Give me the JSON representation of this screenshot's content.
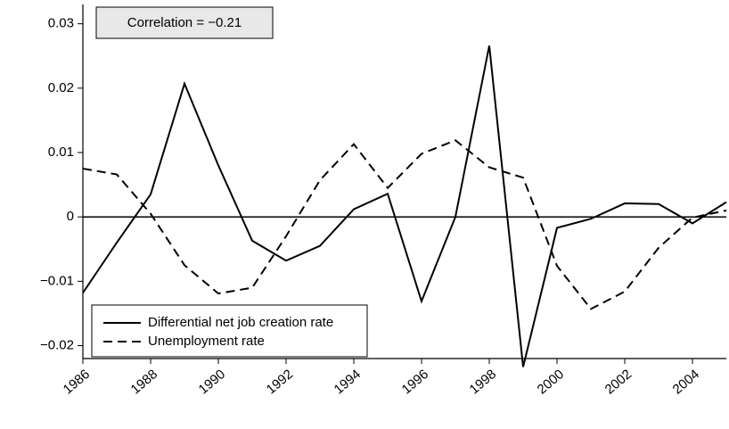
{
  "chart_data": {
    "type": "line",
    "annotation": "Correlation = −0.21",
    "x": [
      1986,
      1987,
      1988,
      1989,
      1990,
      1991,
      1992,
      1993,
      1994,
      1995,
      1996,
      1997,
      1998,
      1999,
      2000,
      2001,
      2002,
      2003,
      2004,
      2005
    ],
    "series": [
      {
        "name": "Differential net job creation rate",
        "color": "#000000",
        "dash": "solid",
        "values": [
          -0.0118,
          -0.004,
          0.0035,
          0.0207,
          0.008,
          -0.0037,
          -0.0068,
          -0.0045,
          0.0012,
          0.0036,
          -0.0131,
          0.0,
          0.0266,
          -0.0233,
          -0.0017,
          -0.0003,
          0.0021,
          0.002,
          -0.001,
          0.0023
        ]
      },
      {
        "name": "Unemployment rate",
        "color": "#000000",
        "dash": "dashed",
        "values": [
          0.0075,
          0.0066,
          0.0005,
          -0.0075,
          -0.0119,
          -0.011,
          -0.003,
          0.0057,
          0.0113,
          0.0045,
          0.0098,
          0.0119,
          0.0077,
          0.0061,
          -0.0076,
          -0.0143,
          -0.0116,
          -0.0048,
          -0.0001,
          0.001
        ]
      }
    ],
    "xlim": [
      1986,
      2005
    ],
    "xticks": [
      1986,
      1988,
      1990,
      1992,
      1994,
      1996,
      1998,
      2000,
      2002,
      2004
    ],
    "ylim": [
      -0.022,
      0.033
    ],
    "yticks": [
      0.03,
      0.02,
      0.01,
      0,
      {
        "value": -0.01,
        "label": "−0.01"
      },
      {
        "value": -0.02,
        "label": "−0.02"
      }
    ],
    "zero_line": true,
    "legend": "lower-left"
  }
}
